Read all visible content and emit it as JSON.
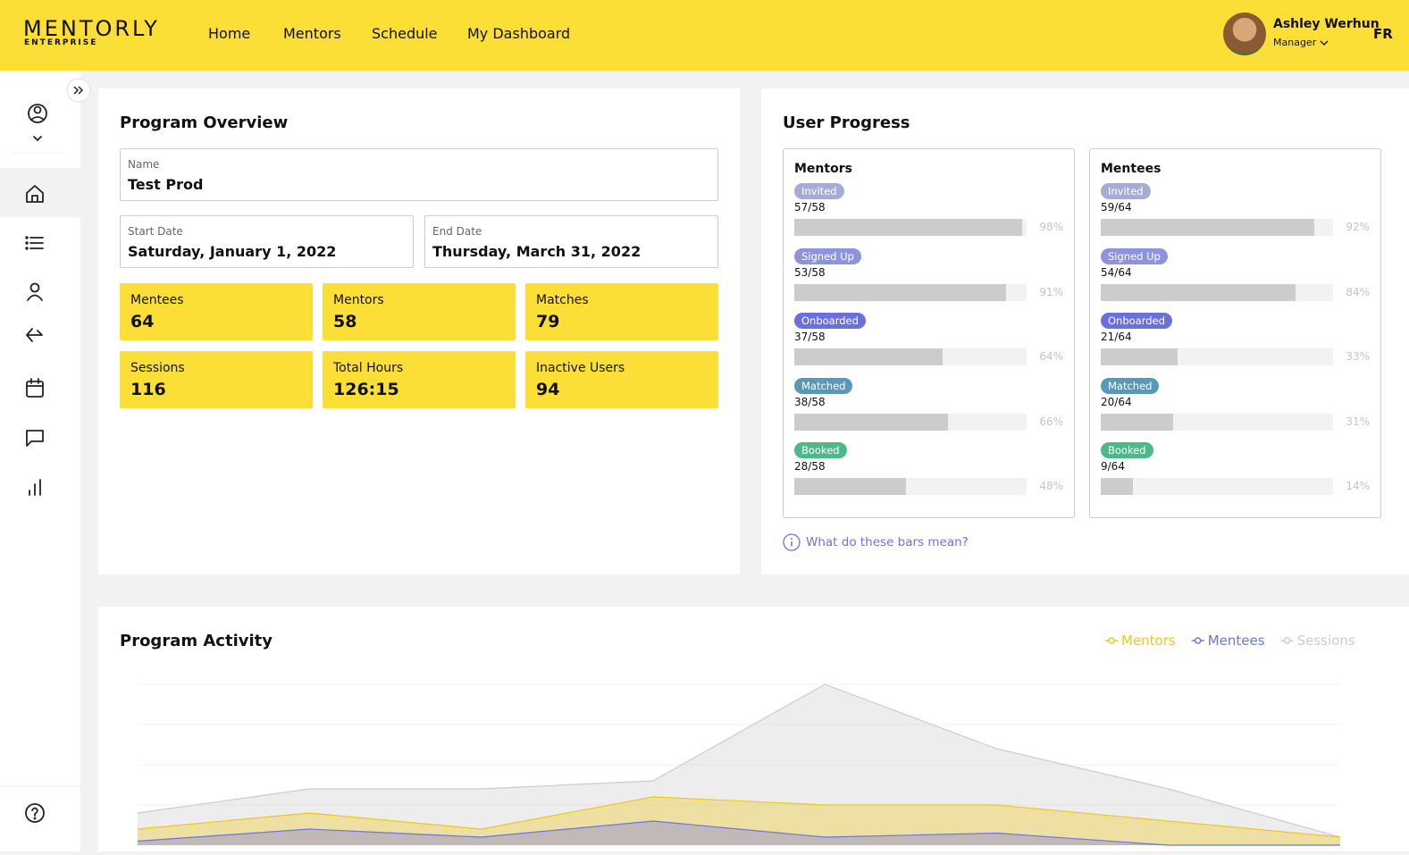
{
  "header": {
    "logo": "MENTORLY",
    "logo_sub": "ENTERPRISE",
    "nav": [
      "Home",
      "Mentors",
      "Schedule",
      "My Dashboard"
    ],
    "user_name": "Ashley Werhun",
    "user_role": "Manager",
    "language": "FR"
  },
  "overview": {
    "title": "Program Overview",
    "name_label": "Name",
    "name_value": "Test Prod",
    "start_label": "Start Date",
    "start_value": "Saturday, January 1, 2022",
    "end_label": "End Date",
    "end_value": "Thursday, March 31, 2022",
    "stats": [
      {
        "label": "Mentees",
        "value": 64
      },
      {
        "label": "Mentors",
        "value": 58
      },
      {
        "label": "Matches",
        "value": 79
      },
      {
        "label": "Sessions",
        "value": 116
      },
      {
        "label": "Total Hours",
        "value": "126:15"
      },
      {
        "label": "Inactive Users",
        "value": 94
      }
    ]
  },
  "progress": {
    "title": "User Progress",
    "help": "What do these bars mean?",
    "groups": [
      {
        "title": "Mentors",
        "rows": [
          {
            "status": "Invited",
            "color": "#a8acd4",
            "count": "57/58",
            "percent": 98,
            "percent_label": "98%"
          },
          {
            "status": "Signed Up",
            "color": "#8d93dd",
            "count": "53/58",
            "percent": 91,
            "percent_label": "91%"
          },
          {
            "status": "Onboarded",
            "color": "#6a70dc",
            "count": "37/58",
            "percent": 64,
            "percent_label": "64%"
          },
          {
            "status": "Matched",
            "color": "#5a98b8",
            "count": "38/58",
            "percent": 66,
            "percent_label": "66%"
          },
          {
            "status": "Booked",
            "color": "#4db98b",
            "count": "28/58",
            "percent": 48,
            "percent_label": "48%"
          }
        ]
      },
      {
        "title": "Mentees",
        "rows": [
          {
            "status": "Invited",
            "color": "#a8acd4",
            "count": "59/64",
            "percent": 92,
            "percent_label": "92%"
          },
          {
            "status": "Signed Up",
            "color": "#8d93dd",
            "count": "54/64",
            "percent": 84,
            "percent_label": "84%"
          },
          {
            "status": "Onboarded",
            "color": "#6a70dc",
            "count": "21/64",
            "percent": 33,
            "percent_label": "33%"
          },
          {
            "status": "Matched",
            "color": "#5a98b8",
            "count": "20/64",
            "percent": 31,
            "percent_label": "31%"
          },
          {
            "status": "Booked",
            "color": "#4db98b",
            "count": "9/64",
            "percent": 14,
            "percent_label": "14%"
          }
        ]
      }
    ]
  },
  "activity": {
    "title": "Program Activity",
    "type": "area",
    "categories": [
      null,
      null,
      null,
      null,
      null,
      null,
      null,
      null
    ],
    "ylim": [
      0,
      4
    ],
    "yticks": [
      0,
      1,
      2,
      3,
      4
    ],
    "grid": true,
    "series": [
      {
        "name": "Sessions",
        "color": "#cccccc",
        "values": [
          0.8,
          1.4,
          1.4,
          1.6,
          4,
          2.4,
          1.4,
          0.2
        ]
      },
      {
        "name": "Mentors",
        "color": "#f0c719",
        "values": [
          0.4,
          0.8,
          0.4,
          1.2,
          1,
          1,
          0.6,
          0.2
        ]
      },
      {
        "name": "Mentees",
        "color": "#6d74e0",
        "values": [
          0.1,
          0.4,
          0.2,
          0.6,
          0.2,
          0.3,
          0,
          0
        ]
      }
    ]
  }
}
